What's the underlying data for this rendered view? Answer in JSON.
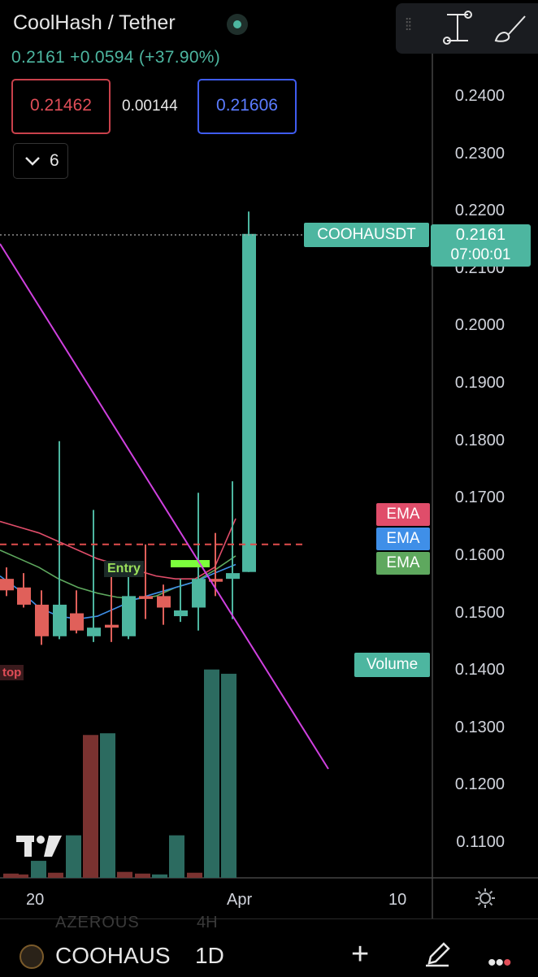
{
  "header": {
    "title": "CoolHash / Tether",
    "price_change": "0.2161 +0.0594 (+37.90%)",
    "sell_price": "0.21462",
    "spread": "0.00144",
    "buy_price": "0.21606",
    "indicators_collapse_icon": "chevron-down-icon",
    "indicators_count": "6"
  },
  "toolbox": {
    "drag_handle_icon": "drag-handle-icon",
    "measure_icon": "measure-icon",
    "brush_icon": "brush-icon"
  },
  "price_axis": {
    "labels": [
      "0.2400",
      "0.2300",
      "0.2200",
      "0.2100",
      "0.2000",
      "0.1900",
      "0.1800",
      "0.1700",
      "0.1600",
      "0.1500",
      "0.1400",
      "0.1300",
      "0.1200",
      "0.1100"
    ]
  },
  "tags": {
    "symbol": "COOHAUSDT",
    "last_price": "0.2161",
    "countdown": "07:00:01",
    "ema1": "EMA",
    "ema2": "EMA",
    "ema3": "EMA",
    "volume": "Volume",
    "entry": "Entry",
    "stop": "top"
  },
  "time_axis": {
    "labels": [
      "20",
      "Apr",
      "10"
    ],
    "settings_icon": "gear-icon"
  },
  "bottom_bar": {
    "ghost_symbol": "AZEROUS",
    "ghost_interval": "4H",
    "symbol_icon": "coin-icon",
    "symbol": "COOHAUS",
    "interval": "1D",
    "add_icon": "plus-icon",
    "draw_icon": "pencil-icon",
    "more_icon": "more-dots-icon"
  },
  "colors": {
    "up": "#4db6a0",
    "down": "#e0605a",
    "trendline": "#d040e0",
    "ema_red": "#e04d6a",
    "ema_blue": "#3f8fe8",
    "ema_green": "#5ea85e"
  },
  "chart_data": {
    "type": "candlestick",
    "ylim": [
      0.105,
      0.245
    ],
    "candles": [
      {
        "o": 0.156,
        "h": 0.158,
        "l": 0.153,
        "c": 0.154
      },
      {
        "o": 0.1545,
        "h": 0.157,
        "l": 0.151,
        "c": 0.1515
      },
      {
        "o": 0.1515,
        "h": 0.154,
        "l": 0.1445,
        "c": 0.146
      },
      {
        "o": 0.146,
        "h": 0.18,
        "l": 0.1455,
        "c": 0.1515
      },
      {
        "o": 0.15,
        "h": 0.154,
        "l": 0.1465,
        "c": 0.147
      },
      {
        "o": 0.146,
        "h": 0.168,
        "l": 0.145,
        "c": 0.1475
      },
      {
        "o": 0.148,
        "h": 0.157,
        "l": 0.145,
        "c": 0.1475
      },
      {
        "o": 0.146,
        "h": 0.157,
        "l": 0.1455,
        "c": 0.153
      },
      {
        "o": 0.153,
        "h": 0.162,
        "l": 0.149,
        "c": 0.1525
      },
      {
        "o": 0.153,
        "h": 0.155,
        "l": 0.148,
        "c": 0.151
      },
      {
        "o": 0.1495,
        "h": 0.156,
        "l": 0.1485,
        "c": 0.1505
      },
      {
        "o": 0.151,
        "h": 0.171,
        "l": 0.147,
        "c": 0.156
      },
      {
        "o": 0.156,
        "h": 0.164,
        "l": 0.153,
        "c": 0.1555
      },
      {
        "o": 0.156,
        "h": 0.173,
        "l": 0.149,
        "c": 0.157
      },
      {
        "o": 0.1572,
        "h": 0.22,
        "l": 0.1572,
        "c": 0.2161
      }
    ],
    "volumes": [
      0.005,
      0.004,
      0.02,
      0.006,
      0.05,
      0.168,
      0.17,
      0.007,
      0.005,
      0.004,
      0.05,
      0.006,
      0.245,
      0.24
    ],
    "volume_up": [
      false,
      false,
      true,
      false,
      true,
      false,
      true,
      false,
      false,
      true,
      true,
      false,
      true,
      true
    ],
    "stop_level": 0.162,
    "entry_level": 0.158,
    "ema_red": [
      0.166,
      0.165,
      0.164,
      0.1625,
      0.161,
      0.1595,
      0.1585,
      0.1575,
      0.1565,
      0.156,
      0.156,
      0.158,
      0.1665
    ],
    "ema_green": [
      0.161,
      0.1595,
      0.158,
      0.156,
      0.1545,
      0.1535,
      0.1528,
      0.1525,
      0.153,
      0.1545,
      0.1555,
      0.1575,
      0.16
    ],
    "ema_blue": [
      0.1565,
      0.154,
      0.151,
      0.1495,
      0.149,
      0.1495,
      0.151,
      0.1525,
      0.1535,
      0.1545,
      0.1555,
      0.157,
      0.1585
    ]
  }
}
